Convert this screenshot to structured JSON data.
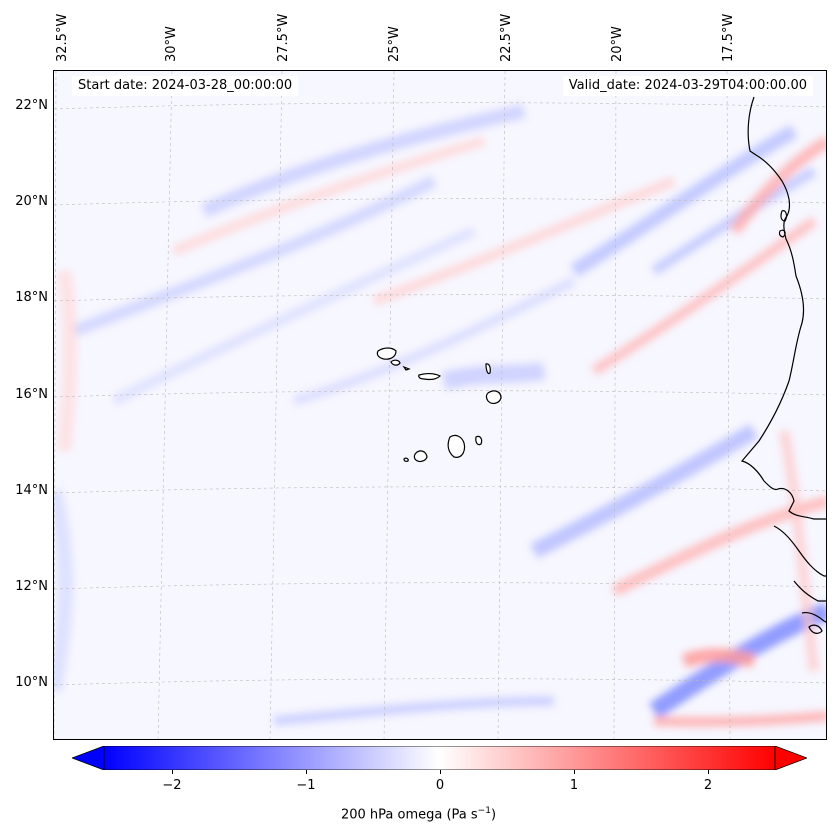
{
  "header": {
    "start_date": "Start date: 2024-03-28_00:00:00",
    "valid_date": "Valid_date: 2024-03-29T04:00:00.00"
  },
  "map": {
    "lon_labels": [
      "32.5°W",
      "30°W",
      "27.5°W",
      "25°W",
      "22.5°W",
      "20°W",
      "17.5°W"
    ],
    "lat_labels": [
      "22°N",
      "20°N",
      "18°N",
      "16°N",
      "14°N",
      "12°N",
      "10°N"
    ],
    "features": [
      "cape-verde-islands",
      "west-africa-coastline"
    ]
  },
  "colorbar": {
    "ticks": [
      "−2",
      "−1",
      "0",
      "1",
      "2"
    ],
    "label_main": "200 hPa omega (Pa s",
    "label_exp": "−1",
    "label_close": ")",
    "colors": {
      "negative": "#0000ff",
      "zero": "#ffffff",
      "positive": "#ff0000"
    }
  }
}
